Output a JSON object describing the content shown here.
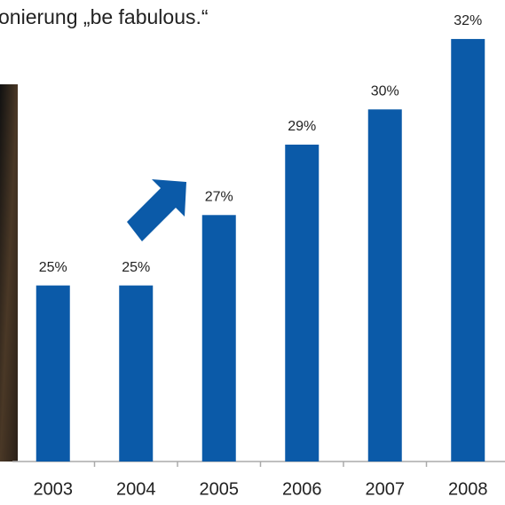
{
  "chart_data": {
    "type": "bar",
    "title": "onierung „be fabulous.“",
    "categories": [
      "2003",
      "2004",
      "2005",
      "2006",
      "2007",
      "2008"
    ],
    "values": [
      25,
      25,
      27,
      29,
      30,
      32
    ],
    "value_labels": [
      "25%",
      "25%",
      "27%",
      "29%",
      "30%",
      "32%"
    ],
    "color": "#0b5aa8",
    "ylim": [
      20,
      32.2
    ],
    "grid": false
  }
}
